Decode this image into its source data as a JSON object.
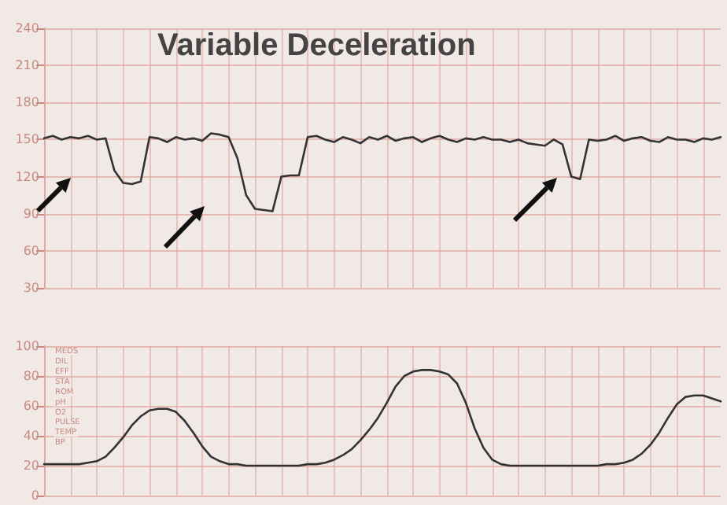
{
  "chart_data": [
    {
      "type": "line",
      "title": "Variable Deceleration",
      "categories": [
        null,
        null,
        null,
        null,
        null,
        null,
        null,
        null,
        null,
        null,
        null,
        null,
        null,
        null,
        null,
        null,
        null,
        null,
        null,
        null,
        null,
        null,
        null,
        null,
        null,
        null,
        null,
        null,
        null,
        null,
        null,
        null,
        null,
        null,
        null,
        null,
        null,
        null,
        null,
        null,
        null,
        null,
        null,
        null,
        null,
        null,
        null,
        null,
        null,
        null,
        null,
        null,
        null,
        null,
        null,
        null,
        null,
        null,
        null,
        null,
        null,
        null,
        null,
        null,
        null,
        null,
        null,
        null,
        null,
        null,
        null,
        null,
        null,
        null,
        null,
        null,
        null,
        null
      ],
      "series": [
        {
          "color": "#333333",
          "values": [
            151,
            153,
            150,
            152,
            151,
            153,
            150,
            151,
            125,
            115,
            114,
            116,
            152,
            151,
            148,
            152,
            150,
            151,
            149,
            155,
            154,
            152,
            135,
            105,
            94,
            93,
            92,
            120,
            121,
            121,
            152,
            153,
            150,
            148,
            152,
            150,
            147,
            152,
            150,
            153,
            149,
            151,
            152,
            148,
            151,
            153,
            150,
            148,
            151,
            150,
            152,
            150,
            150,
            148,
            150,
            147,
            146,
            145,
            150,
            146,
            120,
            118,
            150,
            149,
            150,
            153,
            149,
            151,
            152,
            149,
            148,
            152,
            150,
            150,
            148,
            151,
            150,
            152
          ]
        }
      ],
      "ylim": [
        30,
        240
      ],
      "yticks": [
        30,
        60,
        90,
        120,
        150,
        180,
        210,
        240
      ],
      "grid": true,
      "line_style": "solid"
    },
    {
      "type": "line",
      "categories": [
        null,
        null,
        null,
        null,
        null,
        null,
        null,
        null,
        null,
        null,
        null,
        null,
        null,
        null,
        null,
        null,
        null,
        null,
        null,
        null,
        null,
        null,
        null,
        null,
        null,
        null,
        null,
        null,
        null,
        null,
        null,
        null,
        null,
        null,
        null,
        null,
        null,
        null,
        null,
        null,
        null,
        null,
        null,
        null,
        null,
        null,
        null,
        null,
        null,
        null,
        null,
        null,
        null,
        null,
        null,
        null,
        null,
        null,
        null,
        null,
        null,
        null,
        null,
        null,
        null,
        null,
        null,
        null,
        null,
        null,
        null,
        null,
        null,
        null,
        null,
        null,
        null,
        null
      ],
      "series": [
        {
          "color": "#333333",
          "values": [
            21,
            21,
            21,
            21,
            21,
            22,
            23,
            26,
            32,
            39,
            47,
            53,
            57,
            58,
            58,
            56,
            50,
            42,
            33,
            26,
            23,
            21,
            21,
            20,
            20,
            20,
            20,
            20,
            20,
            20,
            21,
            21,
            22,
            24,
            27,
            31,
            37,
            44,
            52,
            62,
            73,
            80,
            83,
            84,
            84,
            83,
            81,
            75,
            62,
            45,
            32,
            24,
            21,
            20,
            20,
            20,
            20,
            20,
            20,
            20,
            20,
            20,
            20,
            20,
            21,
            21,
            22,
            24,
            28,
            34,
            42,
            52,
            61,
            66,
            67,
            67,
            65,
            63
          ]
        }
      ],
      "ylim": [
        0,
        100
      ],
      "yticks": [
        0,
        20,
        40,
        60,
        80,
        100
      ],
      "grid": true,
      "line_style": "solid",
      "annotations": [
        "MEDS",
        "DIL",
        "EFF",
        "STA",
        "ROM",
        "pH",
        "O2",
        "PULSE",
        "TEMP",
        "BP"
      ]
    }
  ]
}
